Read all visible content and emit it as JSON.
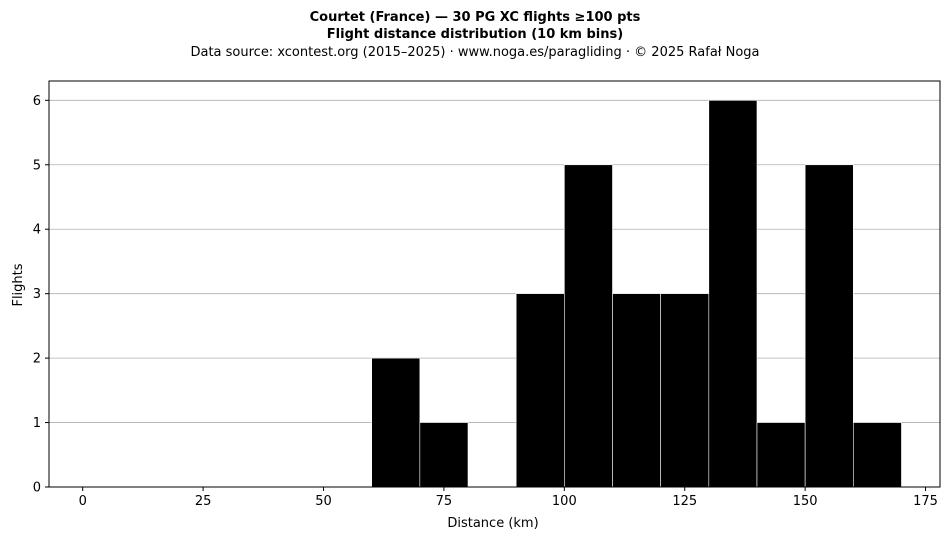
{
  "chart_data": {
    "type": "bar",
    "title": "Courtet (France)  —  30 PG XC flights ≥100 pts",
    "title2": "Flight distance distribution (10 km bins)",
    "subtitle": "Data source: xcontest.org (2015–2025)  ·  www.noga.es/paragliding  ·  © 2025 Rafał Noga",
    "xlabel": "Distance (km)",
    "ylabel": "Flights",
    "xlim": [
      -7,
      178
    ],
    "ylim": [
      0,
      6.3
    ],
    "xticks": [
      0,
      25,
      50,
      75,
      100,
      125,
      150,
      175
    ],
    "yticks": [
      0,
      1,
      2,
      3,
      4,
      5,
      6
    ],
    "grid": "y",
    "bin_width": 10,
    "bins": [
      {
        "start": 60,
        "count": 2
      },
      {
        "start": 70,
        "count": 1
      },
      {
        "start": 80,
        "count": 0
      },
      {
        "start": 90,
        "count": 3
      },
      {
        "start": 100,
        "count": 5
      },
      {
        "start": 110,
        "count": 3
      },
      {
        "start": 120,
        "count": 3
      },
      {
        "start": 130,
        "count": 6
      },
      {
        "start": 140,
        "count": 1
      },
      {
        "start": 150,
        "count": 5
      },
      {
        "start": 160,
        "count": 1
      }
    ],
    "colors": {
      "bar": "#000000",
      "bar_edge": "#ffffff",
      "grid": "#b0b0b0"
    }
  }
}
